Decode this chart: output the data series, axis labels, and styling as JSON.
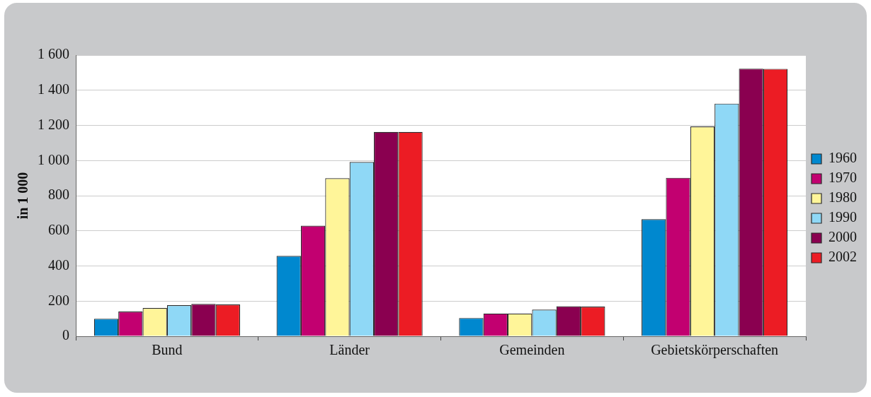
{
  "chart_data": {
    "type": "bar",
    "ylabel": "in 1 000",
    "categories": [
      "Bund",
      "Länder",
      "Gemeinden",
      "Gebietskörperschaften"
    ],
    "series": [
      {
        "name": "1960",
        "color": "#0088cf",
        "values": [
          100,
          457,
          104,
          666
        ]
      },
      {
        "name": "1970",
        "color": "#c20070",
        "values": [
          141,
          629,
          129,
          902
        ]
      },
      {
        "name": "1980",
        "color": "#fff599",
        "values": [
          161,
          899,
          129,
          1194
        ]
      },
      {
        "name": "1990",
        "color": "#8fd8f6",
        "values": [
          177,
          992,
          152,
          1324
        ]
      },
      {
        "name": "2000",
        "color": "#8a0050",
        "values": [
          184,
          1163,
          171,
          1523
        ]
      },
      {
        "name": "2002",
        "color": "#ec1c24",
        "values": [
          181,
          1163,
          169,
          1522
        ]
      }
    ],
    "ylim": [
      0,
      1600
    ],
    "yticks": [
      0,
      200,
      400,
      600,
      800,
      {
        "value": 1000,
        "label": "1 000"
      },
      {
        "value": 1200,
        "label": "1 200"
      },
      {
        "value": 1400,
        "label": "1 400"
      },
      {
        "value": 1600,
        "label": "1 600"
      }
    ],
    "grid": "y",
    "legend": "right"
  }
}
